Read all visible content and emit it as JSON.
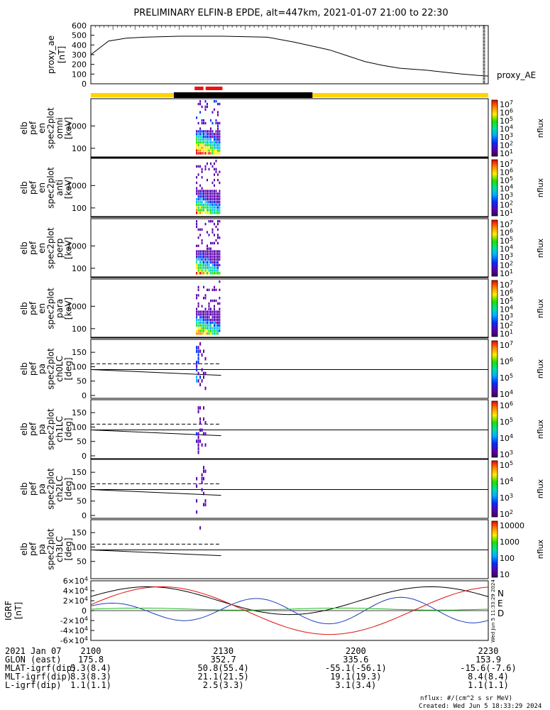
{
  "chart_data": {
    "title": "PRELIMINARY ELFIN-B EPDE, alt=447km, 2021-01-07 21:00 to 22:30",
    "type": "multi-panel spectrogram",
    "time_ticks": [
      "2100",
      "2130",
      "2200",
      "2230"
    ],
    "ae_panel": {
      "ylabel": "proxy_ae [nT]",
      "ylabel_lines": [
        "proxy_ae",
        "[nT]"
      ],
      "right_label": "proxy_AE",
      "yticks": [
        "600",
        "500",
        "400",
        "300",
        "200",
        "100",
        "0"
      ],
      "ylim": [
        0,
        600
      ],
      "series_x_minutes": [
        0,
        4,
        8,
        12,
        20,
        30,
        40,
        46,
        50,
        54,
        58,
        62,
        66,
        70,
        76,
        84,
        88,
        90
      ],
      "series_y_nT": [
        300,
        440,
        470,
        480,
        490,
        490,
        480,
        430,
        390,
        350,
        290,
        230,
        190,
        160,
        140,
        100,
        85,
        80
      ]
    },
    "segments": {
      "colors": {
        "yellow": "#ffd500",
        "black": "#000000",
        "red": "#ee1111"
      }
    },
    "spectrogram_panels": [
      {
        "labels": [
          "elb",
          "pef",
          "en",
          "spec2plot",
          "omni",
          "[keV]"
        ],
        "yticks": [
          "1000",
          "100"
        ],
        "colorbar": {
          "label": "nflux",
          "ticks": [
            "10^7",
            "10^6",
            "10^5",
            "10^4",
            "10^3",
            "10^2",
            "10^1"
          ]
        }
      },
      {
        "labels": [
          "elb",
          "pef",
          "en",
          "spec2plot",
          "anti",
          "[keV]"
        ],
        "yticks": [
          "1000",
          "100"
        ],
        "colorbar": {
          "label": "nflux",
          "ticks": [
            "10^7",
            "10^6",
            "10^5",
            "10^4",
            "10^3",
            "10^2",
            "10^1"
          ]
        }
      },
      {
        "labels": [
          "elb",
          "pef",
          "en",
          "spec2plot",
          "perp",
          "[keV]"
        ],
        "yticks": [
          "1000",
          "100"
        ],
        "colorbar": {
          "label": "nflux",
          "ticks": [
            "10^7",
            "10^6",
            "10^5",
            "10^4",
            "10^3",
            "10^2",
            "10^1"
          ]
        }
      },
      {
        "labels": [
          "elb",
          "pef",
          "en",
          "spec2plot",
          "para",
          "[keV]"
        ],
        "yticks": [
          "1000",
          "100"
        ],
        "colorbar": {
          "label": "nflux",
          "ticks": [
            "10^7",
            "10^6",
            "10^5",
            "10^4",
            "10^3",
            "10^2",
            "10^1"
          ]
        }
      },
      {
        "labels": [
          "elb",
          "pef",
          "pa",
          "spec2plot",
          "ch0LC",
          "[deg]"
        ],
        "yticks": [
          "150",
          "100",
          "50",
          "0"
        ],
        "colorbar": {
          "label": "nflux",
          "ticks": [
            "10^7",
            "10^6",
            "10^5",
            "10^4"
          ]
        }
      },
      {
        "labels": [
          "elb",
          "pef",
          "pa",
          "spec2plot",
          "ch1LC",
          "[deg]"
        ],
        "yticks": [
          "150",
          "100",
          "50",
          "0"
        ],
        "colorbar": {
          "label": "nflux",
          "ticks": [
            "10^6",
            "10^5",
            "10^4",
            "10^3"
          ]
        }
      },
      {
        "labels": [
          "elb",
          "pef",
          "pa",
          "spec2plot",
          "ch2LC",
          "[deg]"
        ],
        "yticks": [
          "150",
          "100",
          "50",
          "0"
        ],
        "colorbar": {
          "label": "nflux",
          "ticks": [
            "10^5",
            "10^4",
            "10^3",
            "10^2"
          ]
        }
      },
      {
        "labels": [
          "elb",
          "pef",
          "pa",
          "spec2plot",
          "ch3LC",
          "[deg]"
        ],
        "yticks": [
          "150",
          "100",
          "50"
        ],
        "colorbar": {
          "label": "nflux",
          "ticks": [
            "10000",
            "1000",
            "100",
            "10"
          ]
        }
      }
    ],
    "igrf_panel": {
      "ylabel_lines": [
        "IGRF",
        "[nT]"
      ],
      "yticks": [
        "6×10^4",
        "4×10^4",
        "2×10^4",
        "0",
        "-2×10^4",
        "-4×10^4",
        "-6×10^4"
      ],
      "ylim": [
        -60000,
        60000
      ],
      "legend": [
        {
          "name": "N",
          "color": "#1f3fbf"
        },
        {
          "name": "E",
          "color": "#22bb22"
        },
        {
          "name": "D",
          "color": "#dd1111"
        }
      ]
    },
    "footer_table": {
      "rows": [
        {
          "label": "2021 Jan 07",
          "values": [
            "2100",
            "2130",
            "2200",
            "2230"
          ]
        },
        {
          "label": "GLON (east)",
          "values": [
            "175.8",
            "352.7",
            "335.6",
            "153.9"
          ]
        },
        {
          "label": "MLAT-igrf(dip)",
          "values": [
            "5.3(8.4)",
            "50.8(55.4)",
            "-55.1(-56.1)",
            "-15.6(-7.6)"
          ]
        },
        {
          "label": "MLT-igrf(dip)",
          "values": [
            "8.3(8.3)",
            "21.1(21.5)",
            "19.1(19.3)",
            "8.4(8.4)"
          ]
        },
        {
          "label": "L-igrf(dip)",
          "values": [
            "1.1(1.1)",
            "2.5(3.3)",
            "3.1(3.4)",
            "1.1(1.1)"
          ]
        }
      ]
    },
    "units_note": "nflux: #/(cm^2 s sr MeV)",
    "created_note": "Created: Wed Jun  5 18:33:29 2024",
    "side_stamp": "Wed Jun  5 11:33:29 2024"
  }
}
